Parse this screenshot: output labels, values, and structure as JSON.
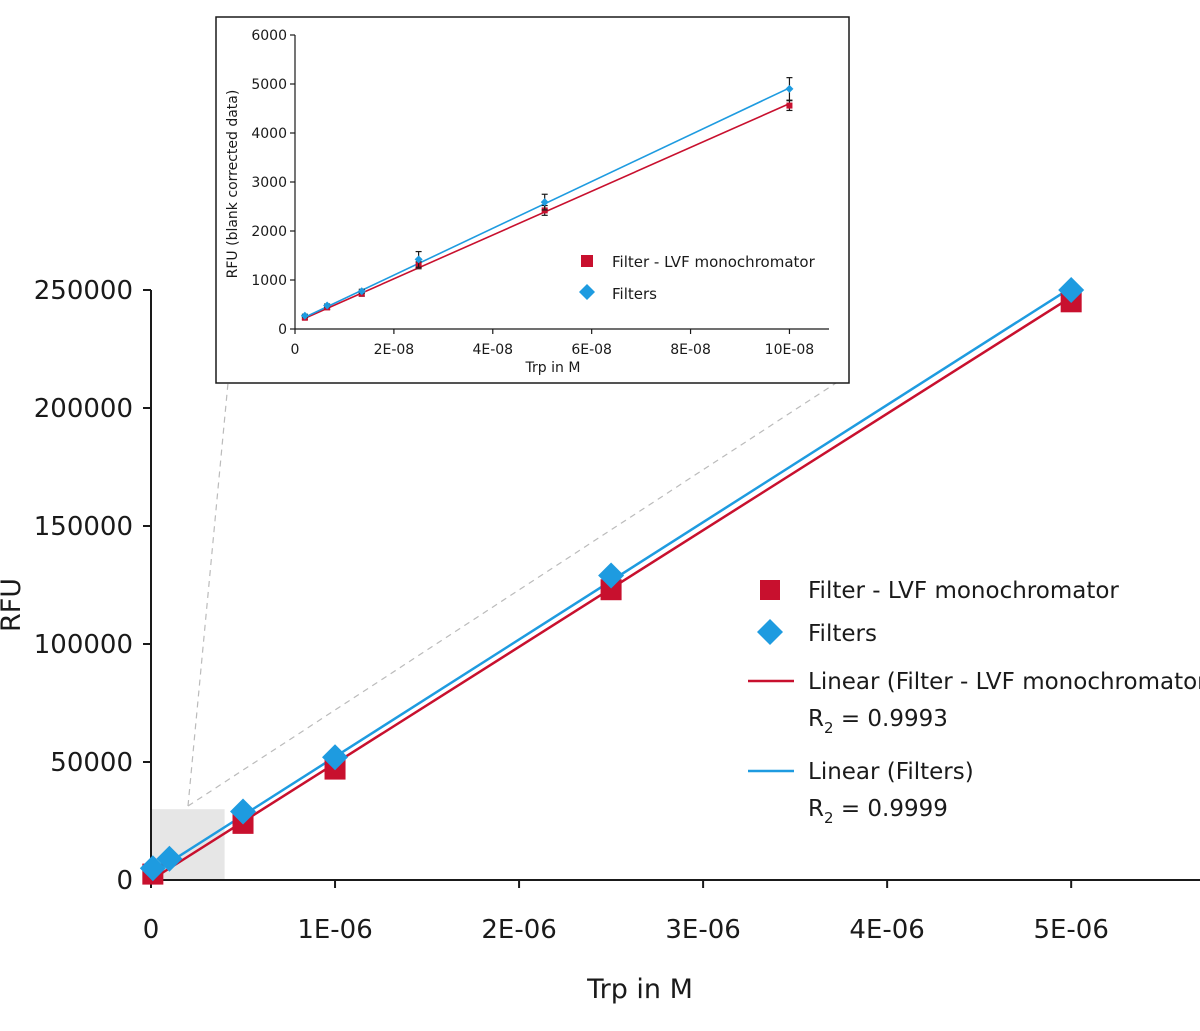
{
  "colors": {
    "monochromator": "#c8102e",
    "filters": "#1e9be0",
    "axis": "#1a1a1a",
    "zoom_box": "#e6e6e6",
    "zoom_line": "#bbbbbb"
  },
  "chart_data": [
    {
      "type": "scatter",
      "xlabel": "Trp in M",
      "ylabel": "RFU",
      "xlim": [
        0,
        5.7e-06
      ],
      "ylim": [
        0,
        250000
      ],
      "x_ticks": [
        0,
        1e-06,
        2e-06,
        3e-06,
        4e-06,
        5e-06
      ],
      "x_tick_labels": [
        "0",
        "1E-06",
        "2E-06",
        "3E-06",
        "4E-06",
        "5E-06"
      ],
      "y_ticks": [
        0,
        50000,
        100000,
        150000,
        200000,
        250000
      ],
      "y_tick_labels": [
        "0",
        "50000",
        "100000",
        "150000",
        "200000",
        "250000"
      ],
      "zoom_region": {
        "x": [
          0,
          4e-07
        ],
        "y": [
          0,
          30000
        ]
      },
      "series": [
        {
          "name": "Filter - LVF monochromator",
          "marker": "square",
          "color": "#c8102e",
          "x": [
            1e-08,
            5e-07,
            1e-06,
            2.5e-06,
            5e-06
          ],
          "y": [
            2500,
            24000,
            47000,
            123000,
            245000
          ],
          "fit": {
            "name": "Linear (Filter - LVF monochromator)",
            "r2_label": "R",
            "r2_sub": "2",
            "r2_value": "= 0.9993",
            "x": [
              0,
              5e-06
            ],
            "y": [
              0,
              247000
            ]
          }
        },
        {
          "name": "Filters",
          "marker": "diamond",
          "color": "#1e9be0",
          "x": [
            1e-08,
            1e-07,
            5e-07,
            1e-06,
            2.5e-06,
            5e-06
          ],
          "y": [
            5000,
            9000,
            29000,
            52000,
            129000,
            250000
          ],
          "fit": {
            "name": "Linear (Filters)",
            "r2_label": "R",
            "r2_sub": "2",
            "r2_value": "= 0.9999",
            "x": [
              0,
              5e-06
            ],
            "y": [
              2500,
              251000
            ]
          }
        }
      ]
    },
    {
      "type": "scatter",
      "xlabel": "Trp in M",
      "ylabel": "RFU (blank corrected data)",
      "xlim": [
        0,
        1.08e-07
      ],
      "ylim": [
        0,
        6000
      ],
      "x_ticks": [
        0,
        2e-08,
        4e-08,
        6e-08,
        8e-08,
        1e-07
      ],
      "x_tick_labels": [
        "0",
        "2E-08",
        "4E-08",
        "6E-08",
        "8E-08",
        "10E-08"
      ],
      "y_ticks": [
        0,
        1000,
        2000,
        3000,
        4000,
        5000,
        6000
      ],
      "y_tick_labels": [
        "0",
        "1000",
        "2000",
        "3000",
        "4000",
        "5000",
        "6000"
      ],
      "series": [
        {
          "name": "Filter - LVF monochromator",
          "marker": "square",
          "color": "#c8102e",
          "x": [
            2e-09,
            6.5e-09,
            1.35e-08,
            2.5e-08,
            5.05e-08,
            1e-07
          ],
          "y": [
            230,
            440,
            720,
            1300,
            2420,
            4560
          ],
          "err": [
            30,
            40,
            50,
            70,
            100,
            100
          ],
          "fit": {
            "x": [
              2e-09,
              1e-07
            ],
            "y": [
              220,
              4600
            ]
          }
        },
        {
          "name": "Filters",
          "marker": "diamond",
          "color": "#1e9be0",
          "x": [
            2e-09,
            6.5e-09,
            1.35e-08,
            2.5e-08,
            5.05e-08,
            1e-07
          ],
          "y": [
            270,
            480,
            770,
            1420,
            2590,
            4900
          ],
          "err": [
            30,
            30,
            40,
            160,
            160,
            230
          ],
          "fit": {
            "x": [
              2e-09,
              1e-07
            ],
            "y": [
              240,
              4920
            ]
          }
        }
      ]
    }
  ]
}
